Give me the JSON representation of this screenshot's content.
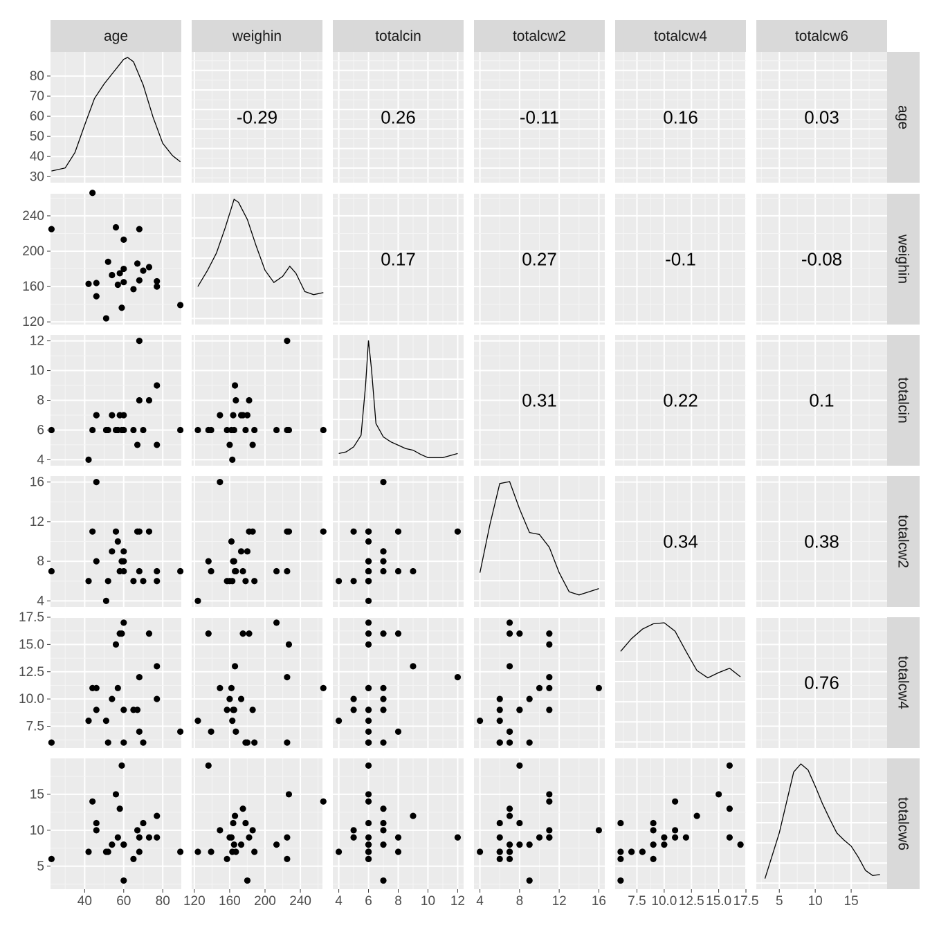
{
  "chart_data": {
    "type": "scatter-matrix",
    "variables": [
      "age",
      "weighin",
      "totalcin",
      "totalcw2",
      "totalcw4",
      "totalcw6"
    ],
    "strip_labels": {
      "columns": [
        "age",
        "weighin",
        "totalcin",
        "totalcw2",
        "totalcw4",
        "totalcw6"
      ],
      "rows": [
        "age",
        "weighin",
        "totalcin",
        "totalcw2",
        "totalcw4",
        "totalcw6"
      ]
    },
    "ranges": {
      "age": [
        22.5,
        89.5
      ],
      "weighin": [
        117,
        265
      ],
      "totalcin": [
        3.6,
        12.4
      ],
      "totalcw2": [
        3.4,
        16.6
      ],
      "totalcw4": [
        5.5,
        17.5
      ],
      "totalcw6": [
        1.8,
        20
      ]
    },
    "ticks": {
      "age": {
        "x": [
          {
            "v": 40,
            "label": "40"
          },
          {
            "v": 60,
            "label": "60"
          },
          {
            "v": 80,
            "label": "80"
          }
        ],
        "y": [
          {
            "v": 30,
            "label": "30"
          },
          {
            "v": 40,
            "label": "40"
          },
          {
            "v": 50,
            "label": "50"
          },
          {
            "v": 60,
            "label": "60"
          },
          {
            "v": 70,
            "label": "70"
          },
          {
            "v": 80,
            "label": "80"
          }
        ]
      },
      "weighin": {
        "x": [
          {
            "v": 120,
            "label": "120"
          },
          {
            "v": 160,
            "label": "160"
          },
          {
            "v": 200,
            "label": "200"
          },
          {
            "v": 240,
            "label": "240"
          }
        ],
        "y": [
          {
            "v": 120,
            "label": "120"
          },
          {
            "v": 160,
            "label": "160"
          },
          {
            "v": 200,
            "label": "200"
          },
          {
            "v": 240,
            "label": "240"
          }
        ]
      },
      "totalcin": {
        "x": [
          {
            "v": 4,
            "label": "4"
          },
          {
            "v": 6,
            "label": "6"
          },
          {
            "v": 8,
            "label": "8"
          },
          {
            "v": 10,
            "label": "10"
          },
          {
            "v": 12,
            "label": "12"
          }
        ],
        "y": [
          {
            "v": 4,
            "label": "4"
          },
          {
            "v": 6,
            "label": "6"
          },
          {
            "v": 8,
            "label": "8"
          },
          {
            "v": 10,
            "label": "10"
          },
          {
            "v": 12,
            "label": "12"
          }
        ]
      },
      "totalcw2": {
        "x": [
          {
            "v": 4,
            "label": "4"
          },
          {
            "v": 8,
            "label": "8"
          },
          {
            "v": 12,
            "label": "12"
          },
          {
            "v": 16,
            "label": "16"
          }
        ],
        "y": [
          {
            "v": 4,
            "label": "4"
          },
          {
            "v": 8,
            "label": "8"
          },
          {
            "v": 12,
            "label": "12"
          },
          {
            "v": 16,
            "label": "16"
          }
        ]
      },
      "totalcw4": {
        "x": [
          {
            "v": 7.5,
            "label": "7.5"
          },
          {
            "v": 10,
            "label": "10.0"
          },
          {
            "v": 12.5,
            "label": "12.5"
          },
          {
            "v": 15,
            "label": "15.0"
          },
          {
            "v": 17.5,
            "label": "17.5"
          }
        ],
        "y": [
          {
            "v": 7.5,
            "label": "7.5"
          },
          {
            "v": 10,
            "label": "10.0"
          },
          {
            "v": 12.5,
            "label": "12.5"
          },
          {
            "v": 15,
            "label": "15.0"
          },
          {
            "v": 17.5,
            "label": "17.5"
          }
        ]
      },
      "totalcw6": {
        "x": [
          {
            "v": 5,
            "label": "5"
          },
          {
            "v": 10,
            "label": "10"
          },
          {
            "v": 15,
            "label": "15"
          }
        ],
        "y": [
          {
            "v": 5,
            "label": "5"
          },
          {
            "v": 10,
            "label": "10"
          },
          {
            "v": 15,
            "label": "15"
          }
        ]
      }
    },
    "correlations": {
      "0-1": "-0.29",
      "0-2": "0.26",
      "0-3": "-0.11",
      "0-4": "0.16",
      "0-5": "0.03",
      "1-2": "0.17",
      "1-3": "0.27",
      "1-4": "-0.1",
      "1-5": "-0.08",
      "2-3": "0.31",
      "2-4": "0.22",
      "2-5": "0.1",
      "3-4": "0.34",
      "3-5": "0.38",
      "4-5": "0.76"
    },
    "observations": [
      [
        23,
        225,
        6,
        7,
        6,
        6
      ],
      [
        42,
        163,
        4,
        6,
        8,
        7
      ],
      [
        44,
        266,
        6,
        11,
        11,
        14
      ],
      [
        46,
        149,
        7,
        16,
        11,
        10
      ],
      [
        46,
        164,
        7,
        8,
        9,
        11
      ],
      [
        51,
        124,
        6,
        4,
        8,
        7
      ],
      [
        52,
        188,
        6,
        6,
        6,
        7
      ],
      [
        54,
        173,
        7,
        9,
        10,
        8
      ],
      [
        56,
        227,
        6,
        11,
        15,
        15
      ],
      [
        57,
        162,
        6,
        10,
        11,
        9
      ],
      [
        58,
        175,
        7,
        7,
        16,
        13
      ],
      [
        59,
        136,
        6,
        8,
        16,
        19
      ],
      [
        60,
        180,
        7,
        9,
        6,
        3
      ],
      [
        60,
        213,
        6,
        7,
        17,
        8
      ],
      [
        60,
        165,
        6,
        8,
        9,
        8
      ],
      [
        65,
        157,
        6,
        6,
        9,
        6
      ],
      [
        67,
        186,
        5,
        11,
        9,
        10
      ],
      [
        68,
        225,
        12,
        11,
        12,
        9
      ],
      [
        68,
        167,
        8,
        7,
        7,
        7
      ],
      [
        70,
        178,
        6,
        6,
        6,
        11
      ],
      [
        73,
        182,
        8,
        11,
        16,
        9
      ],
      [
        77,
        160,
        5,
        6,
        10,
        9
      ],
      [
        77,
        166,
        9,
        7,
        13,
        12
      ],
      [
        89,
        139,
        6,
        7,
        7,
        7
      ]
    ],
    "density_estimates": {
      "age": {
        "x": [
          23,
          30,
          35,
          40,
          45,
          50,
          55,
          60,
          62,
          65,
          70,
          75,
          80,
          85,
          89
        ],
        "y": [
          0.001,
          0.0015,
          0.004,
          0.0085,
          0.0128,
          0.0152,
          0.0172,
          0.0192,
          0.0195,
          0.0188,
          0.015,
          0.0098,
          0.0055,
          0.0035,
          0.0025
        ]
      },
      "weighin": {
        "x": [
          124,
          135,
          145,
          155,
          165,
          170,
          180,
          190,
          200,
          210,
          220,
          228,
          235,
          245,
          255,
          266
        ],
        "y": [
          0.0032,
          0.0048,
          0.0065,
          0.009,
          0.0118,
          0.0115,
          0.0098,
          0.0072,
          0.0048,
          0.0036,
          0.0042,
          0.0052,
          0.0045,
          0.0027,
          0.0024,
          0.0026
        ]
      },
      "totalcin": {
        "x": [
          4,
          4.5,
          5,
          5.5,
          5.8,
          6,
          6.2,
          6.5,
          7,
          7.5,
          8,
          8.5,
          9,
          9.5,
          10,
          11,
          12
        ],
        "y": [
          0.04,
          0.05,
          0.08,
          0.15,
          0.45,
          0.72,
          0.55,
          0.22,
          0.14,
          0.11,
          0.09,
          0.07,
          0.06,
          0.035,
          0.015,
          0.015,
          0.04
        ]
      },
      "totalcw2": {
        "x": [
          4,
          5,
          6,
          7,
          8,
          9,
          10,
          11,
          12,
          13,
          14,
          15,
          16
        ],
        "y": [
          0.045,
          0.12,
          0.185,
          0.188,
          0.145,
          0.108,
          0.105,
          0.085,
          0.045,
          0.015,
          0.01,
          0.015,
          0.02
        ]
      },
      "totalcw4": {
        "x": [
          6,
          7,
          8,
          9,
          10,
          11,
          12,
          13,
          14,
          15,
          16,
          17
        ],
        "y": [
          0.086,
          0.098,
          0.107,
          0.112,
          0.113,
          0.105,
          0.086,
          0.068,
          0.061,
          0.066,
          0.07,
          0.062
        ]
      },
      "totalcw6": {
        "x": [
          3,
          5,
          7,
          8,
          9,
          10,
          11,
          12,
          13,
          14,
          15,
          16,
          17,
          18,
          19
        ],
        "y": [
          0.005,
          0.05,
          0.11,
          0.118,
          0.112,
          0.096,
          0.079,
          0.064,
          0.05,
          0.043,
          0.037,
          0.026,
          0.013,
          0.008,
          0.009
        ]
      }
    }
  }
}
